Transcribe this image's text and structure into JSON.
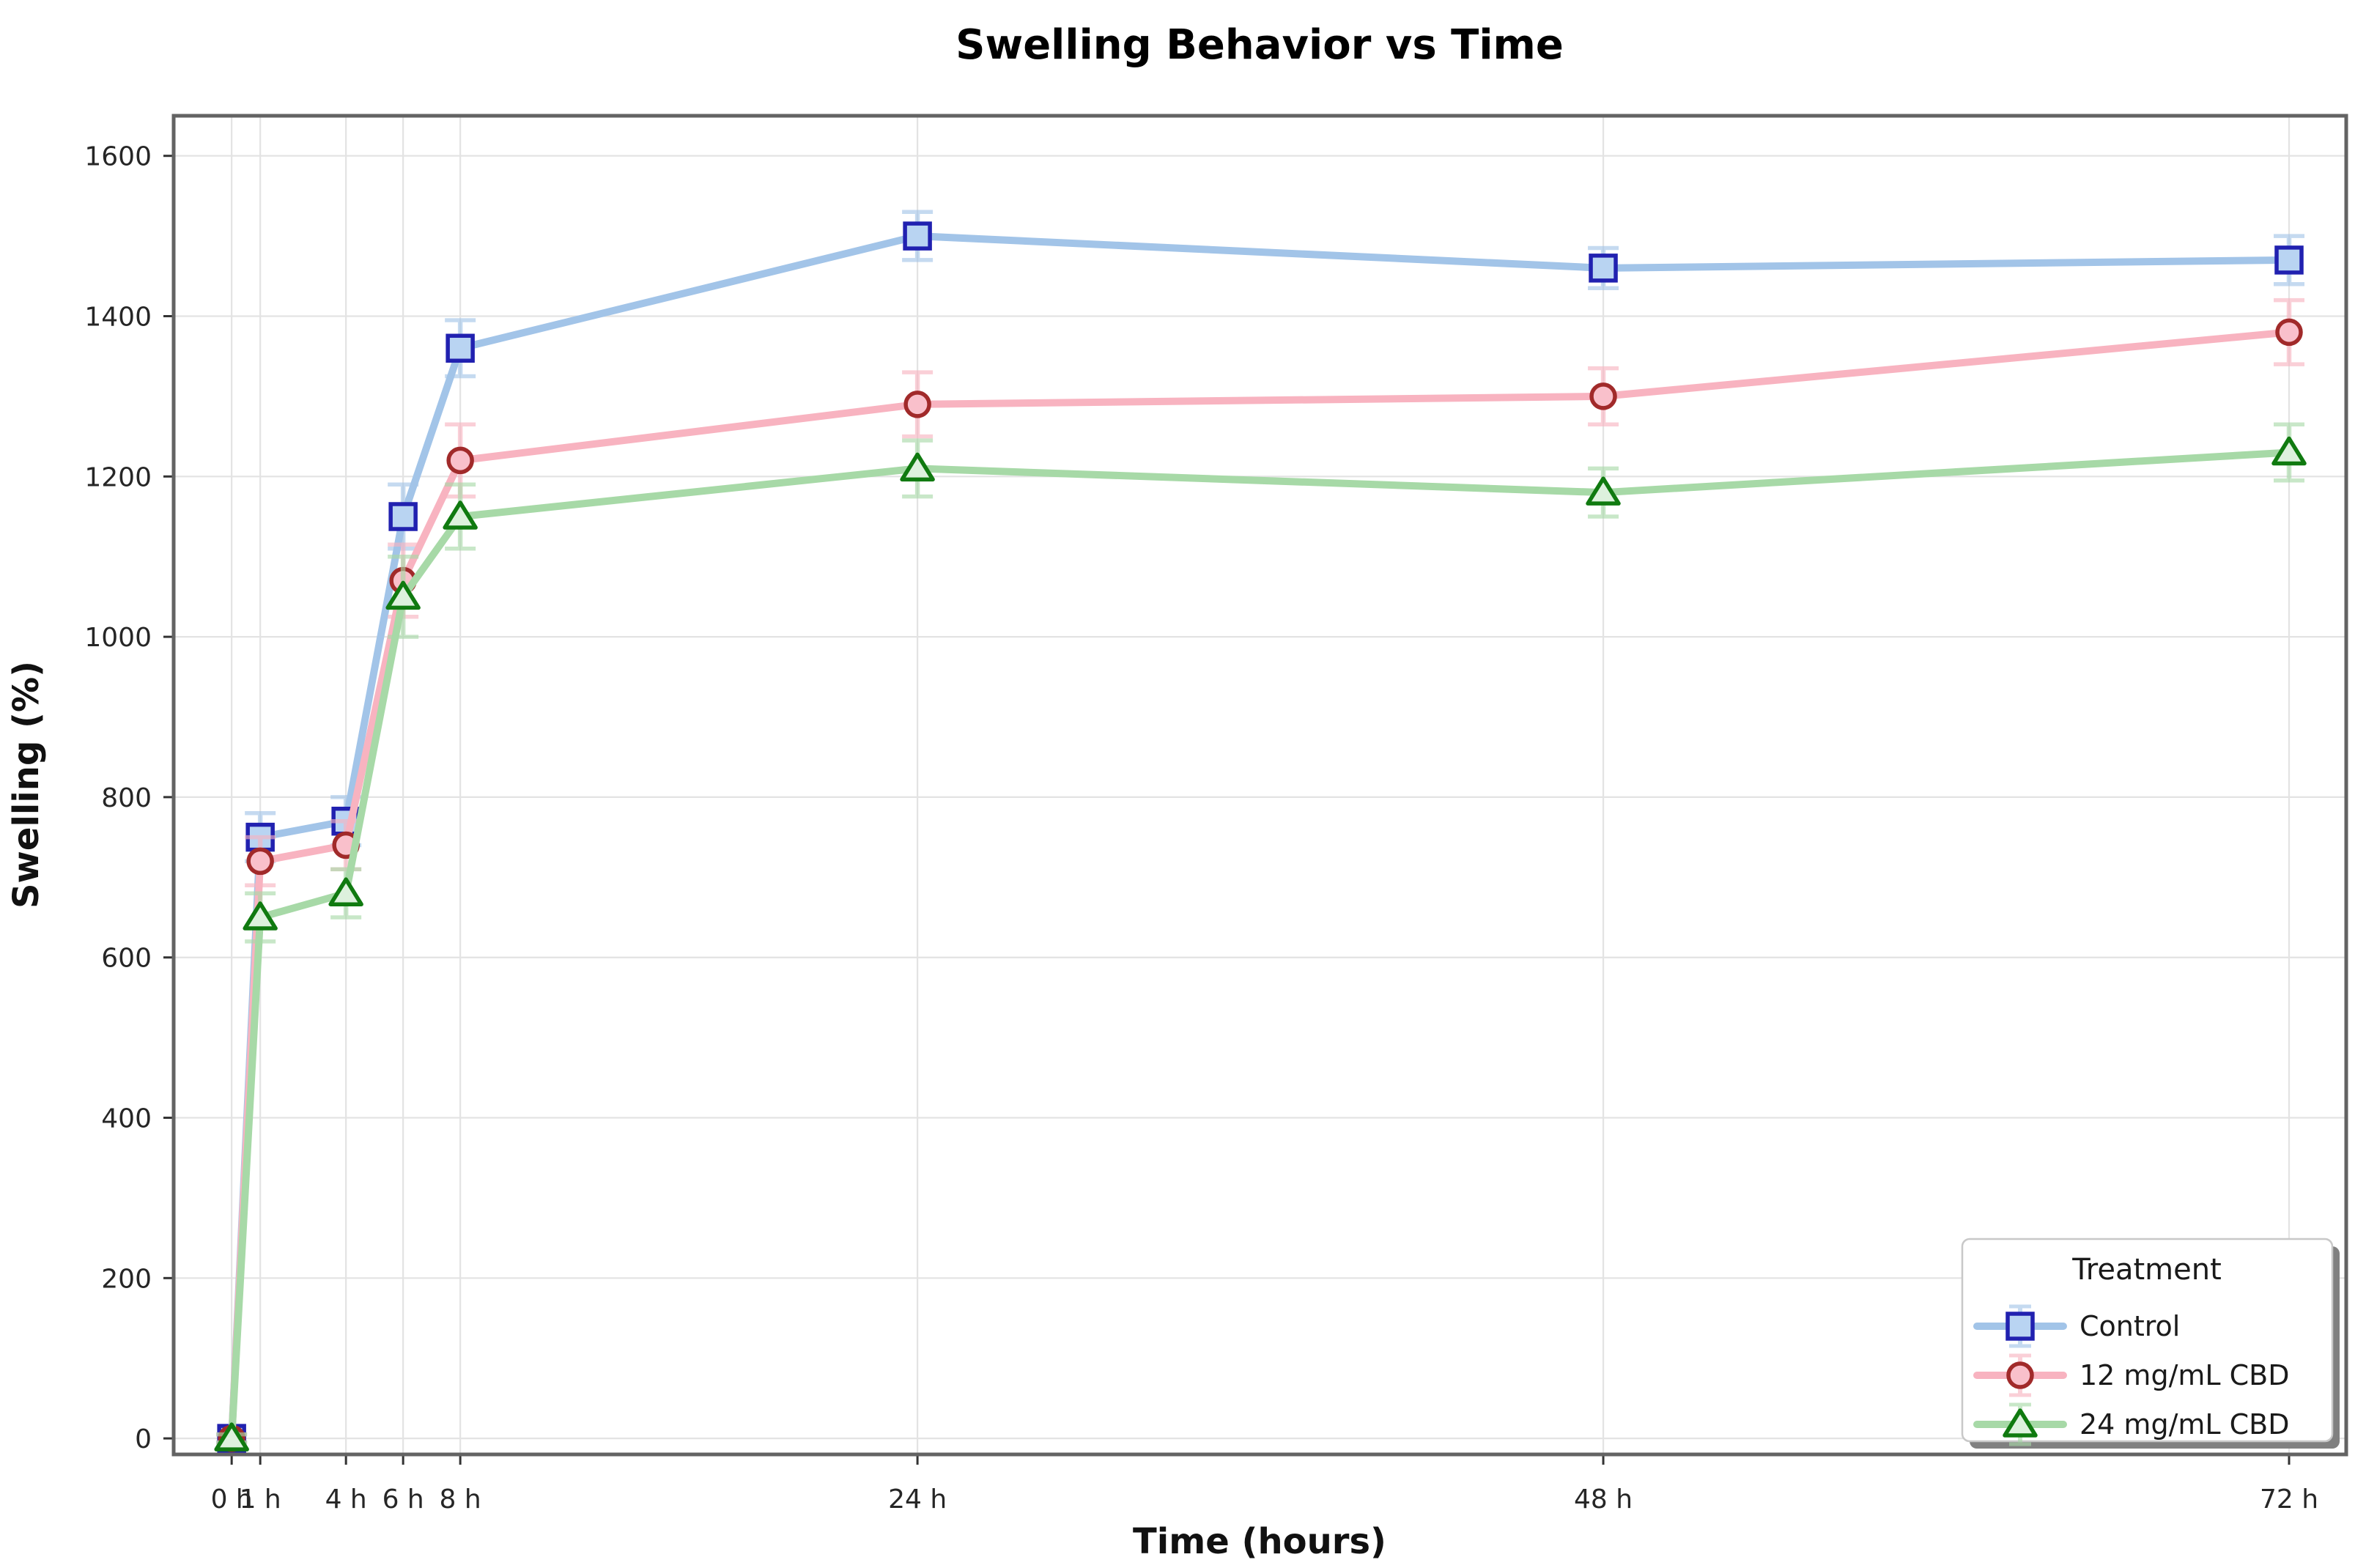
{
  "chart_data": {
    "type": "line",
    "title": "Swelling Behavior vs Time",
    "xlabel": "Time (hours)",
    "ylabel": "Swelling (%)",
    "x": [
      0,
      1,
      4,
      6,
      8,
      24,
      48,
      72
    ],
    "x_tick_labels": [
      "0 h",
      "1 h",
      "4 h",
      "6 h",
      "8 h",
      "24 h",
      "48 h",
      "72 h"
    ],
    "y_ticks": [
      0,
      200,
      400,
      600,
      800,
      1000,
      1200,
      1400,
      1600
    ],
    "xlim": [
      -2.03,
      74.0
    ],
    "ylim": [
      -20,
      1650
    ],
    "grid": true,
    "grid_color": "#e3e3e3",
    "spine_color": "#636363",
    "tick_color": "#333333",
    "legend": {
      "title": "Treatment",
      "position": "lower right"
    },
    "series": [
      {
        "name": "Control",
        "marker": "square",
        "line_color": "#a2c4e8",
        "marker_fill": "#b9d4f2",
        "marker_edge": "#2121b0",
        "values": [
          0,
          750,
          770,
          1150,
          1360,
          1500,
          1460,
          1470
        ],
        "errors": [
          5,
          30,
          30,
          40,
          35,
          30,
          25,
          30
        ]
      },
      {
        "name": "12 mg/mL CBD",
        "marker": "circle",
        "line_color": "#f8b3c0",
        "marker_fill": "#f9c0cb",
        "marker_edge": "#a12a2a",
        "values": [
          0,
          720,
          740,
          1070,
          1220,
          1290,
          1300,
          1380
        ],
        "errors": [
          5,
          30,
          30,
          45,
          45,
          40,
          35,
          40
        ]
      },
      {
        "name": "24 mg/mL CBD",
        "marker": "triangle",
        "line_color": "#a7d9a7",
        "marker_fill": "#ddf1dd",
        "marker_edge": "#107a10",
        "values": [
          0,
          650,
          680,
          1050,
          1150,
          1210,
          1180,
          1230
        ],
        "errors": [
          5,
          30,
          30,
          50,
          40,
          35,
          30,
          35
        ]
      }
    ]
  }
}
